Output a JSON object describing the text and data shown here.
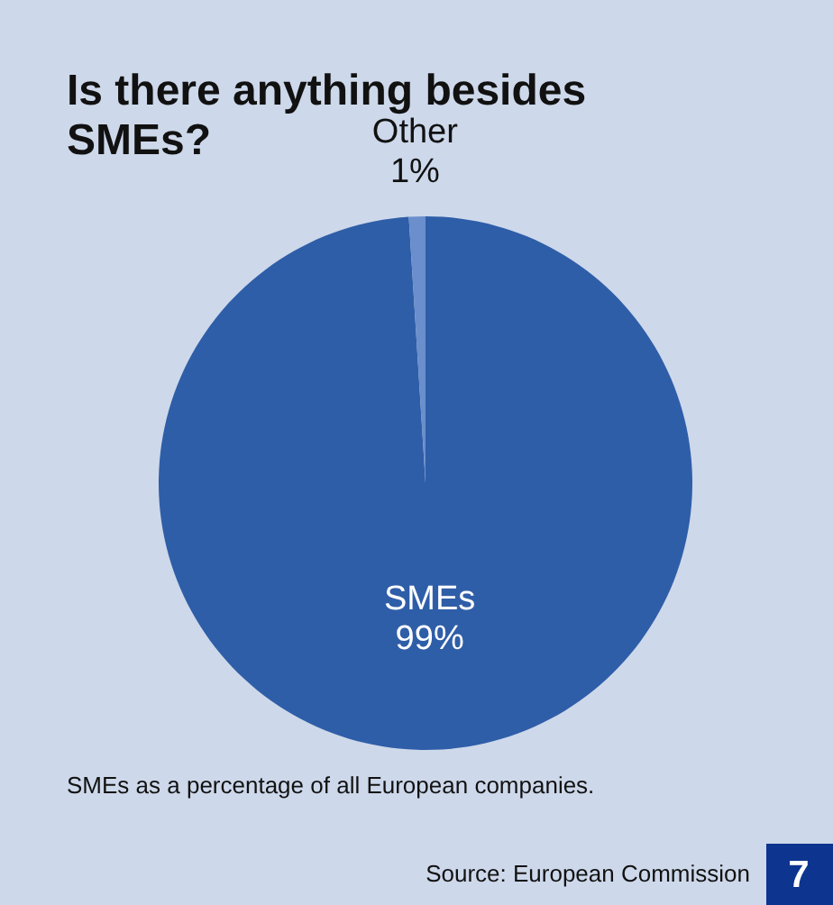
{
  "chart_data": {
    "type": "pie",
    "title": "Is there anything besides SMEs?",
    "categories": [
      "SMEs",
      "Other"
    ],
    "values": [
      99,
      1
    ],
    "colors": [
      "#2f5ea8",
      "#6a8fcc"
    ],
    "value_labels": [
      "99%",
      "1%"
    ],
    "annotations": [
      "SMEs as a percentage of all European companies.",
      "Source: European Commission",
      "7"
    ]
  }
}
